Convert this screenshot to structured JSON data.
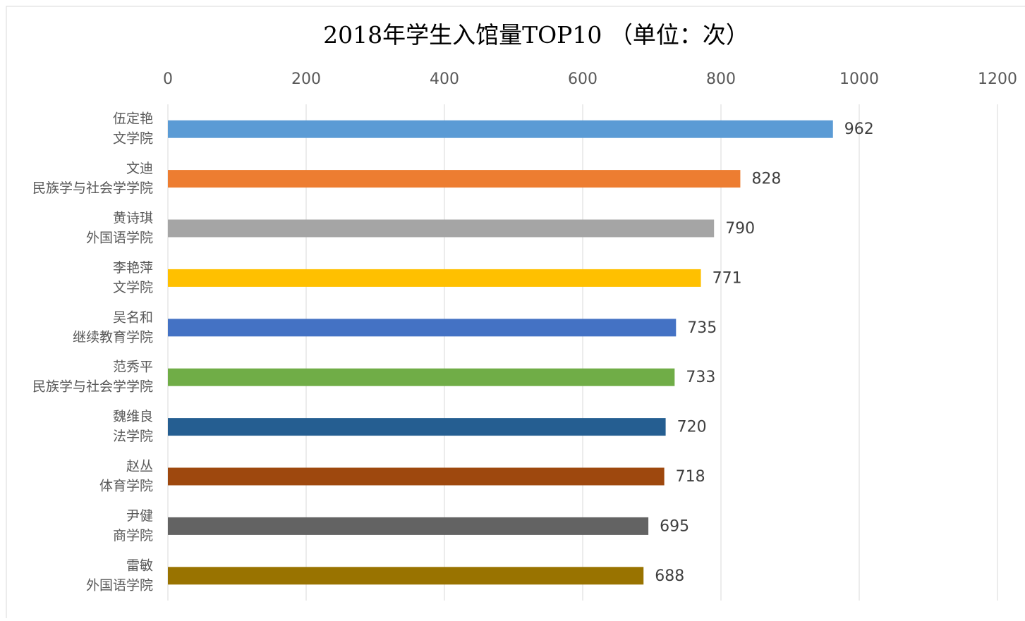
{
  "chart_data": {
    "type": "bar",
    "orientation": "horizontal",
    "title": "2018年学生入馆量TOP10 （单位：次）",
    "categories": [
      [
        "伍定艳",
        "文学院"
      ],
      [
        "文迪",
        "民族学与社会学学院"
      ],
      [
        "黄诗琪",
        "外国语学院"
      ],
      [
        "李艳萍",
        "文学院"
      ],
      [
        "吴名和",
        "继续教育学院"
      ],
      [
        "范秀平",
        "民族学与社会学学院"
      ],
      [
        "魏维良",
        "法学院"
      ],
      [
        "赵丛",
        "体育学院"
      ],
      [
        "尹健",
        "商学院"
      ],
      [
        "雷敏",
        "外国语学院"
      ]
    ],
    "values": [
      962,
      828,
      790,
      771,
      735,
      733,
      720,
      718,
      695,
      688
    ],
    "colors": [
      "#5b9bd5",
      "#ed7d31",
      "#a5a5a5",
      "#ffc000",
      "#4472c4",
      "#70ad47",
      "#255e91",
      "#9e480e",
      "#636363",
      "#997300"
    ],
    "xlim": [
      0,
      1200
    ],
    "xticks": [
      0,
      200,
      400,
      600,
      800,
      1000,
      1200
    ],
    "grid": true,
    "axis_position": "top"
  }
}
